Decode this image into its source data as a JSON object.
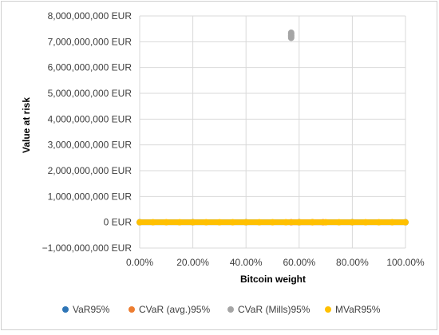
{
  "chart_data": {
    "type": "scatter",
    "title": "",
    "xlabel": "Bitcoin weight",
    "ylabel": "Value at risk",
    "xlim": [
      0,
      1
    ],
    "ylim": [
      -1000000000,
      8000000000
    ],
    "x_ticks": [
      0,
      0.2,
      0.4,
      0.6,
      0.8,
      1.0
    ],
    "x_tick_labels": [
      "0.00%",
      "20.00%",
      "40.00%",
      "60.00%",
      "80.00%",
      "100.00%"
    ],
    "y_ticks": [
      8000000000,
      7000000000,
      6000000000,
      5000000000,
      4000000000,
      3000000000,
      2000000000,
      1000000000,
      0,
      -1000000000
    ],
    "y_tick_labels": [
      "8,000,000,000 EUR",
      "7,000,000,000 EUR",
      "6,000,000,000 EUR",
      "5,000,000,000 EUR",
      "4,000,000,000 EUR",
      "3,000,000,000 EUR",
      "2,000,000,000 EUR",
      "1,000,000,000 EUR",
      "0 EUR",
      "−1,000,000,000 EUR"
    ],
    "grid": {
      "x": true,
      "y": true
    },
    "legend_position": "bottom",
    "series": [
      {
        "name": "VaR95%",
        "color": "#2e75b6",
        "points": [
          [
            0.0,
            0
          ],
          [
            0.2,
            0
          ],
          [
            0.4,
            0
          ],
          [
            0.6,
            0
          ],
          [
            0.8,
            0
          ],
          [
            1.0,
            0
          ]
        ]
      },
      {
        "name": "CVaR (avg.)95%",
        "color": "#ed7d31",
        "points": [
          [
            0.57,
            0
          ],
          [
            0.6,
            0
          ],
          [
            0.65,
            0
          ],
          [
            0.69,
            0
          ]
        ]
      },
      {
        "name": "CVaR (Mills)95%",
        "color": "#a5a5a5",
        "points": [
          [
            0.57,
            7150000000
          ],
          [
            0.57,
            7200000000
          ],
          [
            0.57,
            7250000000
          ],
          [
            0.57,
            7300000000
          ],
          [
            0.57,
            7350000000
          ]
        ]
      },
      {
        "name": "MVaR95%",
        "color": "#ffc000",
        "points": [
          [
            0.0,
            0
          ],
          [
            0.05,
            0
          ],
          [
            0.1,
            0
          ],
          [
            0.15,
            0
          ],
          [
            0.2,
            0
          ],
          [
            0.25,
            0
          ],
          [
            0.3,
            0
          ],
          [
            0.35,
            0
          ],
          [
            0.4,
            0
          ],
          [
            0.45,
            0
          ],
          [
            0.5,
            0
          ],
          [
            0.55,
            0
          ],
          [
            0.6,
            0
          ],
          [
            0.65,
            0
          ],
          [
            0.7,
            0
          ],
          [
            0.75,
            0
          ],
          [
            0.8,
            0
          ],
          [
            0.85,
            0
          ],
          [
            0.9,
            0
          ],
          [
            0.95,
            0
          ],
          [
            1.0,
            0
          ]
        ]
      }
    ]
  }
}
